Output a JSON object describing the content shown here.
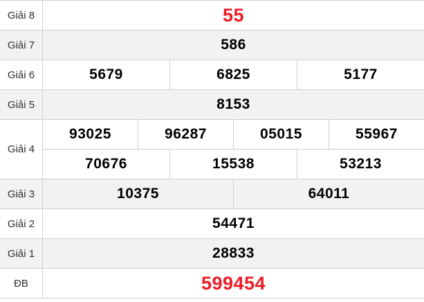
{
  "table": {
    "rows": [
      {
        "label": "Giải 8",
        "highlight": true,
        "groups": [
          [
            "55"
          ]
        ]
      },
      {
        "label": "Giải 7",
        "highlight": false,
        "groups": [
          [
            "586"
          ]
        ]
      },
      {
        "label": "Giải 6",
        "highlight": false,
        "groups": [
          [
            "5679",
            "6825",
            "5177"
          ]
        ]
      },
      {
        "label": "Giải 5",
        "highlight": false,
        "groups": [
          [
            "8153"
          ]
        ]
      },
      {
        "label": "Giải 4",
        "highlight": false,
        "groups": [
          [
            "93025",
            "96287",
            "05015",
            "55967"
          ],
          [
            "70676",
            "15538",
            "53213"
          ]
        ]
      },
      {
        "label": "Giải 3",
        "highlight": false,
        "groups": [
          [
            "10375",
            "64011"
          ]
        ]
      },
      {
        "label": "Giải 2",
        "highlight": false,
        "groups": [
          [
            "54471"
          ]
        ]
      },
      {
        "label": "Giải 1",
        "highlight": false,
        "groups": [
          [
            "28833"
          ]
        ]
      },
      {
        "label": "ĐB",
        "highlight": true,
        "groups": [
          [
            "599454"
          ]
        ]
      }
    ],
    "colors": {
      "highlight": "#ee1c25",
      "stripe": "#f2f2f2",
      "border": "#cfcfcf",
      "text": "#000000",
      "label_text": "#2e2e2e"
    }
  }
}
